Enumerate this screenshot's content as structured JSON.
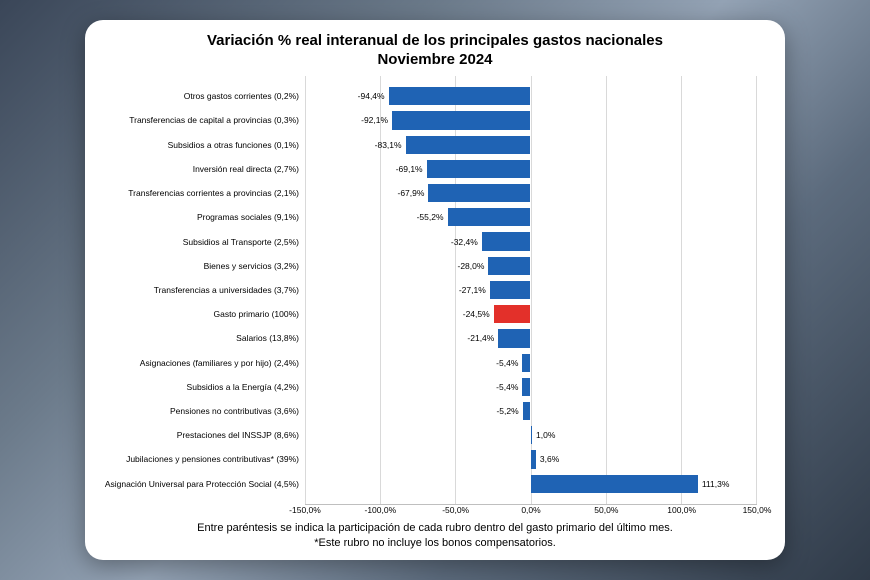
{
  "title_line1": "Variación % real interanual de los principales gastos nacionales",
  "title_line2": "Noviembre 2024",
  "footnote_line1": "Entre paréntesis se indica la participación de cada rubro dentro del gasto primario del último mes.",
  "footnote_line2": "*Este rubro no incluye los bonos compensatorios.",
  "chart": {
    "type": "bar",
    "orientation": "horizontal",
    "xlim": [
      -150,
      150
    ],
    "xtick_step": 50,
    "xtick_labels": [
      "-150,0%",
      "-100,0%",
      "-50,0%",
      "0,0%",
      "50,0%",
      "100,0%",
      "150,0%"
    ],
    "bar_default_color": "#1f63b4",
    "bar_highlight_color": "#e3302a",
    "grid_color": "#d9d9d9",
    "border_color": "#bfbfbf",
    "background_color": "#ffffff",
    "label_fontsize": 8.5,
    "title_fontsize": 15,
    "bar_thickness_ratio": 0.65,
    "data": [
      {
        "category": "Otros gastos corrientes (0,2%)",
        "value": -94.4,
        "value_label": "-94,4%",
        "highlight": false
      },
      {
        "category": "Transferencias de capital a provincias (0,3%)",
        "value": -92.1,
        "value_label": "-92,1%",
        "highlight": false
      },
      {
        "category": "Subsidios a otras funciones (0,1%)",
        "value": -83.1,
        "value_label": "-83,1%",
        "highlight": false
      },
      {
        "category": "Inversión real directa (2,7%)",
        "value": -69.1,
        "value_label": "-69,1%",
        "highlight": false
      },
      {
        "category": "Transferencias corrientes a provincias (2,1%)",
        "value": -67.9,
        "value_label": "-67,9%",
        "highlight": false
      },
      {
        "category": "Programas sociales (9,1%)",
        "value": -55.2,
        "value_label": "-55,2%",
        "highlight": false
      },
      {
        "category": "Subsidios al Transporte (2,5%)",
        "value": -32.4,
        "value_label": "-32,4%",
        "highlight": false
      },
      {
        "category": "Bienes y servicios (3,2%)",
        "value": -28.0,
        "value_label": "-28,0%",
        "highlight": false
      },
      {
        "category": "Transferencias a universidades (3,7%)",
        "value": -27.1,
        "value_label": "-27,1%",
        "highlight": false
      },
      {
        "category": "Gasto primario (100%)",
        "value": -24.5,
        "value_label": "-24,5%",
        "highlight": true
      },
      {
        "category": "Salarios (13,8%)",
        "value": -21.4,
        "value_label": "-21,4%",
        "highlight": false
      },
      {
        "category": "Asignaciones (familiares y por hijo) (2,4%)",
        "value": -5.4,
        "value_label": "-5,4%",
        "highlight": false
      },
      {
        "category": "Subsidios a la Energía (4,2%)",
        "value": -5.4,
        "value_label": "-5,4%",
        "highlight": false
      },
      {
        "category": "Pensiones no contributivas (3,6%)",
        "value": -5.2,
        "value_label": "-5,2%",
        "highlight": false
      },
      {
        "category": "Prestaciones del INSSJP (8,6%)",
        "value": 1.0,
        "value_label": "1,0%",
        "highlight": false
      },
      {
        "category": "Jubilaciones y pensiones contributivas* (39%)",
        "value": 3.6,
        "value_label": "3,6%",
        "highlight": false
      },
      {
        "category": "Asignación Universal para Protección Social (4,5%)",
        "value": 111.3,
        "value_label": "111,3%",
        "highlight": false
      }
    ]
  }
}
